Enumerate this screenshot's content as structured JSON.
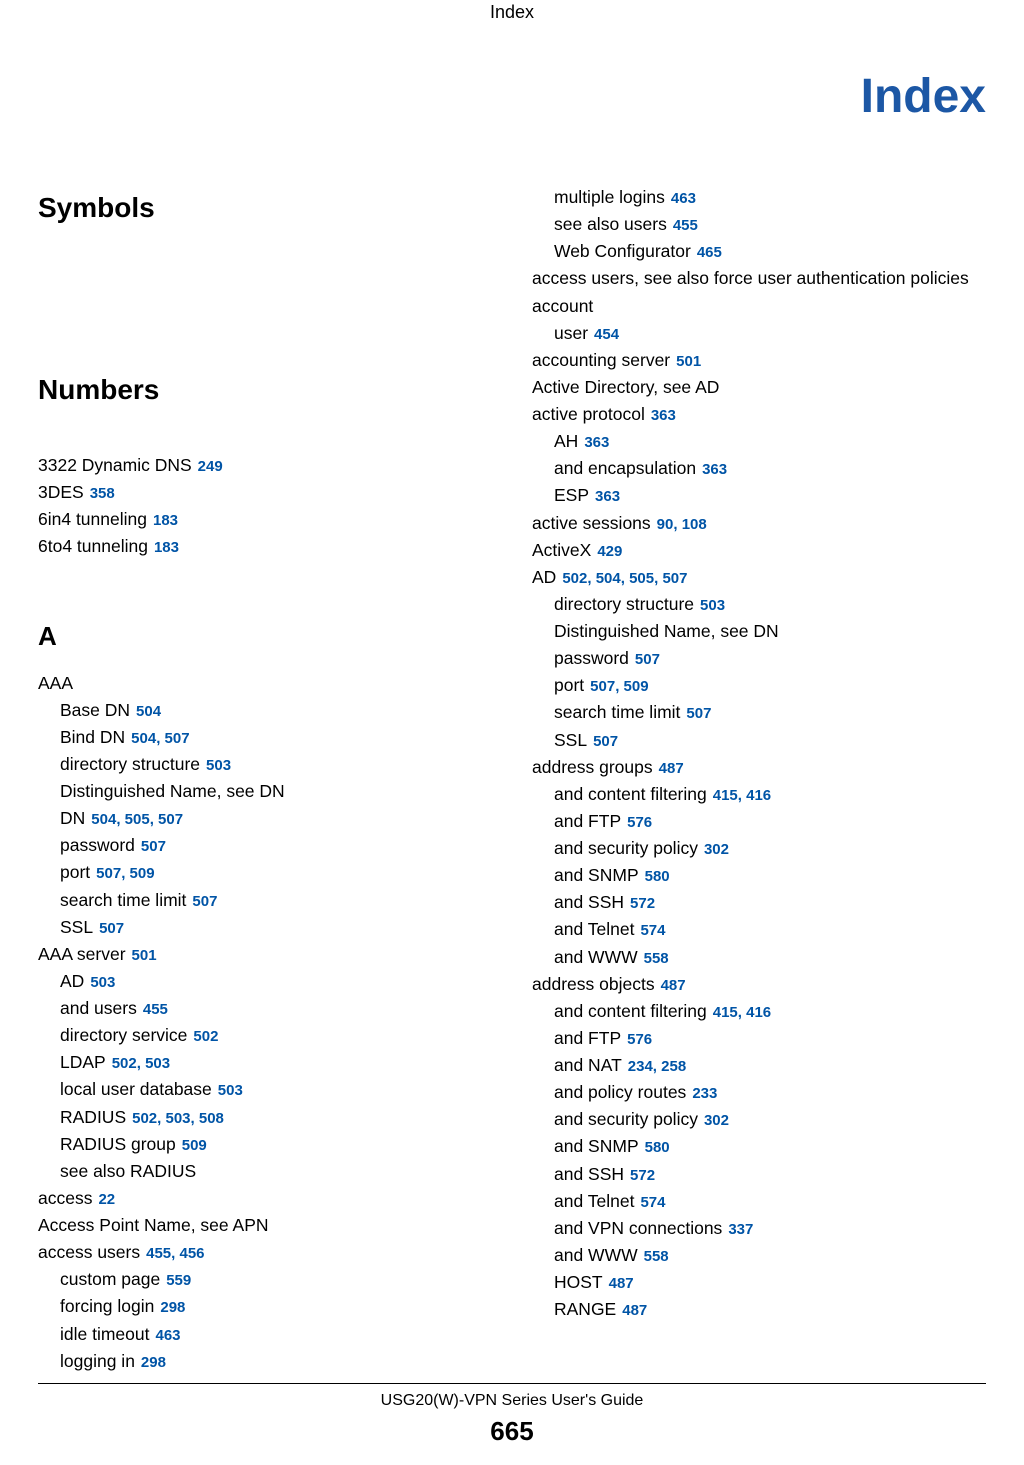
{
  "colors": {
    "link": "#0054a6",
    "accent": "#1c57a5",
    "text": "#000000",
    "background": "#ffffff"
  },
  "header": {
    "running": "Index"
  },
  "title": "Index",
  "footer": {
    "book": "USG20(W)-VPN Series User's Guide",
    "page": "665"
  },
  "sections": {
    "symbols": {
      "heading": "Symbols"
    },
    "numbers": {
      "heading": "Numbers",
      "entries": [
        {
          "text": "3322 Dynamic DNS",
          "pages": [
            "249"
          ]
        },
        {
          "text": "3DES",
          "pages": [
            "358"
          ]
        },
        {
          "text": "6in4 tunneling",
          "pages": [
            "183"
          ]
        },
        {
          "text": "6to4 tunneling",
          "pages": [
            "183"
          ]
        }
      ]
    },
    "a": {
      "heading": "A",
      "entries": [
        {
          "text": "AAA",
          "pages": []
        },
        {
          "text": "Base DN",
          "pages": [
            "504"
          ],
          "sub": true
        },
        {
          "text": "Bind DN",
          "pages": [
            "504",
            "507"
          ],
          "sub": true
        },
        {
          "text": "directory structure",
          "pages": [
            "503"
          ],
          "sub": true
        },
        {
          "text": "Distinguished Name, see DN",
          "pages": [],
          "sub": true
        },
        {
          "text": "DN",
          "pages": [
            "504",
            "505",
            "507"
          ],
          "sub": true
        },
        {
          "text": "password",
          "pages": [
            "507"
          ],
          "sub": true
        },
        {
          "text": "port",
          "pages": [
            "507",
            "509"
          ],
          "sub": true
        },
        {
          "text": "search time limit",
          "pages": [
            "507"
          ],
          "sub": true
        },
        {
          "text": "SSL",
          "pages": [
            "507"
          ],
          "sub": true
        },
        {
          "text": "AAA server",
          "pages": [
            "501"
          ]
        },
        {
          "text": "AD",
          "pages": [
            "503"
          ],
          "sub": true
        },
        {
          "text": "and users",
          "pages": [
            "455"
          ],
          "sub": true
        },
        {
          "text": "directory service",
          "pages": [
            "502"
          ],
          "sub": true
        },
        {
          "text": "LDAP",
          "pages": [
            "502",
            "503"
          ],
          "sub": true
        },
        {
          "text": "local user database",
          "pages": [
            "503"
          ],
          "sub": true
        },
        {
          "text": "RADIUS",
          "pages": [
            "502",
            "503",
            "508"
          ],
          "sub": true
        },
        {
          "text": "RADIUS group",
          "pages": [
            "509"
          ],
          "sub": true
        },
        {
          "text": "see also RADIUS",
          "pages": [],
          "sub": true
        },
        {
          "text": "access",
          "pages": [
            "22"
          ]
        },
        {
          "text": "Access Point Name, see APN",
          "pages": []
        },
        {
          "text": "access users",
          "pages": [
            "455",
            "456"
          ]
        },
        {
          "text": "custom page",
          "pages": [
            "559"
          ],
          "sub": true
        },
        {
          "text": "forcing login",
          "pages": [
            "298"
          ],
          "sub": true
        },
        {
          "text": "idle timeout",
          "pages": [
            "463"
          ],
          "sub": true
        },
        {
          "text": "logging in",
          "pages": [
            "298"
          ],
          "sub": true
        }
      ]
    },
    "a_right": {
      "entries": [
        {
          "text": "multiple logins",
          "pages": [
            "463"
          ],
          "sub": true
        },
        {
          "text": "see also users",
          "pages": [
            "455"
          ],
          "sub": true
        },
        {
          "text": "Web Configurator",
          "pages": [
            "465"
          ],
          "sub": true
        },
        {
          "text": "access users, see also force user authentication policies",
          "pages": []
        },
        {
          "text": "account",
          "pages": []
        },
        {
          "text": "user",
          "pages": [
            "454"
          ],
          "sub": true
        },
        {
          "text": "accounting server",
          "pages": [
            "501"
          ]
        },
        {
          "text": "Active Directory, see AD",
          "pages": []
        },
        {
          "text": "active protocol",
          "pages": [
            "363"
          ]
        },
        {
          "text": "AH",
          "pages": [
            "363"
          ],
          "sub": true
        },
        {
          "text": "and encapsulation",
          "pages": [
            "363"
          ],
          "sub": true
        },
        {
          "text": "ESP",
          "pages": [
            "363"
          ],
          "sub": true
        },
        {
          "text": "active sessions",
          "pages": [
            "90",
            "108"
          ]
        },
        {
          "text": "ActiveX",
          "pages": [
            "429"
          ]
        },
        {
          "text": "AD",
          "pages": [
            "502",
            "504",
            "505",
            "507"
          ]
        },
        {
          "text": "directory structure",
          "pages": [
            "503"
          ],
          "sub": true
        },
        {
          "text": "Distinguished Name, see DN",
          "pages": [],
          "sub": true
        },
        {
          "text": "password",
          "pages": [
            "507"
          ],
          "sub": true
        },
        {
          "text": "port",
          "pages": [
            "507",
            "509"
          ],
          "sub": true
        },
        {
          "text": "search time limit",
          "pages": [
            "507"
          ],
          "sub": true
        },
        {
          "text": "SSL",
          "pages": [
            "507"
          ],
          "sub": true
        },
        {
          "text": "address groups",
          "pages": [
            "487"
          ]
        },
        {
          "text": "and content filtering",
          "pages": [
            "415",
            "416"
          ],
          "sub": true
        },
        {
          "text": "and FTP",
          "pages": [
            "576"
          ],
          "sub": true
        },
        {
          "text": "and security policy",
          "pages": [
            "302"
          ],
          "sub": true
        },
        {
          "text": "and SNMP",
          "pages": [
            "580"
          ],
          "sub": true
        },
        {
          "text": "and SSH",
          "pages": [
            "572"
          ],
          "sub": true
        },
        {
          "text": "and Telnet",
          "pages": [
            "574"
          ],
          "sub": true
        },
        {
          "text": "and WWW",
          "pages": [
            "558"
          ],
          "sub": true
        },
        {
          "text": "address objects",
          "pages": [
            "487"
          ]
        },
        {
          "text": "and content filtering",
          "pages": [
            "415",
            "416"
          ],
          "sub": true
        },
        {
          "text": "and FTP",
          "pages": [
            "576"
          ],
          "sub": true
        },
        {
          "text": "and NAT",
          "pages": [
            "234",
            "258"
          ],
          "sub": true
        },
        {
          "text": "and policy routes",
          "pages": [
            "233"
          ],
          "sub": true
        },
        {
          "text": "and security policy",
          "pages": [
            "302"
          ],
          "sub": true
        },
        {
          "text": "and SNMP",
          "pages": [
            "580"
          ],
          "sub": true
        },
        {
          "text": "and SSH",
          "pages": [
            "572"
          ],
          "sub": true
        },
        {
          "text": "and Telnet",
          "pages": [
            "574"
          ],
          "sub": true
        },
        {
          "text": "and VPN connections",
          "pages": [
            "337"
          ],
          "sub": true
        },
        {
          "text": "and WWW",
          "pages": [
            "558"
          ],
          "sub": true
        },
        {
          "text": "HOST",
          "pages": [
            "487"
          ],
          "sub": true
        },
        {
          "text": "RANGE",
          "pages": [
            "487"
          ],
          "sub": true
        }
      ]
    }
  }
}
